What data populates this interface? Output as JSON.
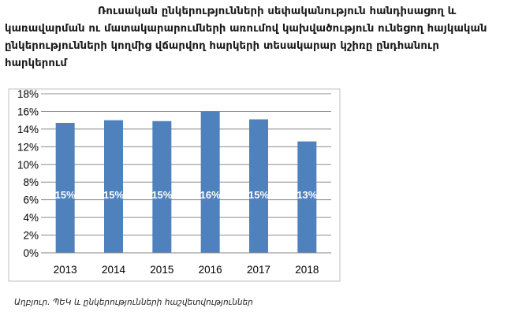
{
  "title": "Ռուսական ընկերությունների սեփականություն հանդիսացող և կառավարման ու մատակարարումների առումով կախվածություն ունեցող հայկական ընկերությունների կողմից վճարվող հարկերի տեսակարար կշիռը ընդհանուր հարկերում",
  "source": "Աղբյուր. ՊԵԿ և ընկերությունների հաշվետվություններ",
  "colors": {
    "bar": "#4f81bd",
    "grid": "#8c8c8c",
    "label": "#ffffff",
    "axis_text": "#000000"
  },
  "chart_data": {
    "type": "bar",
    "categories": [
      "2013",
      "2014",
      "2015",
      "2016",
      "2017",
      "2018"
    ],
    "values": [
      14.7,
      15.0,
      14.9,
      16.0,
      15.1,
      12.6
    ],
    "data_labels": [
      "15%",
      "15%",
      "15%",
      "16%",
      "15%",
      "13%"
    ],
    "y_ticks": [
      "0%",
      "2%",
      "4%",
      "6%",
      "8%",
      "10%",
      "12%",
      "14%",
      "16%",
      "18%"
    ],
    "ylim": [
      0,
      18
    ],
    "grid": true,
    "legend": false
  }
}
